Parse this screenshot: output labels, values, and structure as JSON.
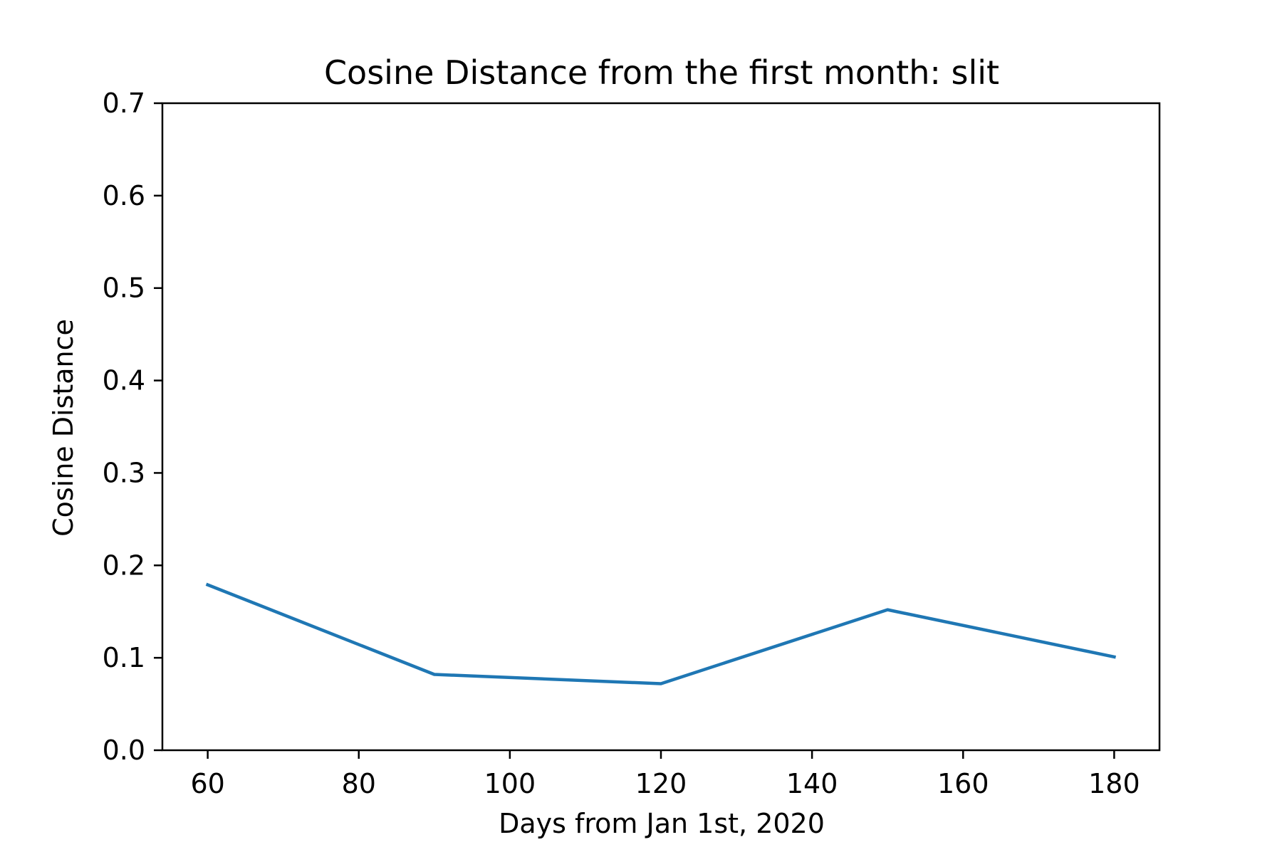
{
  "chart_data": {
    "type": "line",
    "title": "Cosine Distance from the first month: slit",
    "xlabel": "Days from Jan 1st, 2020",
    "ylabel": "Cosine Distance",
    "xlim": [
      54,
      186
    ],
    "ylim": [
      0.0,
      0.7
    ],
    "xticks": [
      60,
      80,
      100,
      120,
      140,
      160,
      180
    ],
    "xtick_labels": [
      "60",
      "80",
      "100",
      "120",
      "140",
      "160",
      "180"
    ],
    "yticks": [
      0.0,
      0.1,
      0.2,
      0.3,
      0.4,
      0.5,
      0.6,
      0.7
    ],
    "ytick_labels": [
      "0.0",
      "0.1",
      "0.2",
      "0.3",
      "0.4",
      "0.5",
      "0.6",
      "0.7"
    ],
    "grid": false,
    "x": [
      60,
      90,
      120,
      150,
      180
    ],
    "series": [
      {
        "values": [
          0.179,
          0.082,
          0.072,
          0.152,
          0.101
        ],
        "color": "#1f77b4"
      }
    ]
  }
}
